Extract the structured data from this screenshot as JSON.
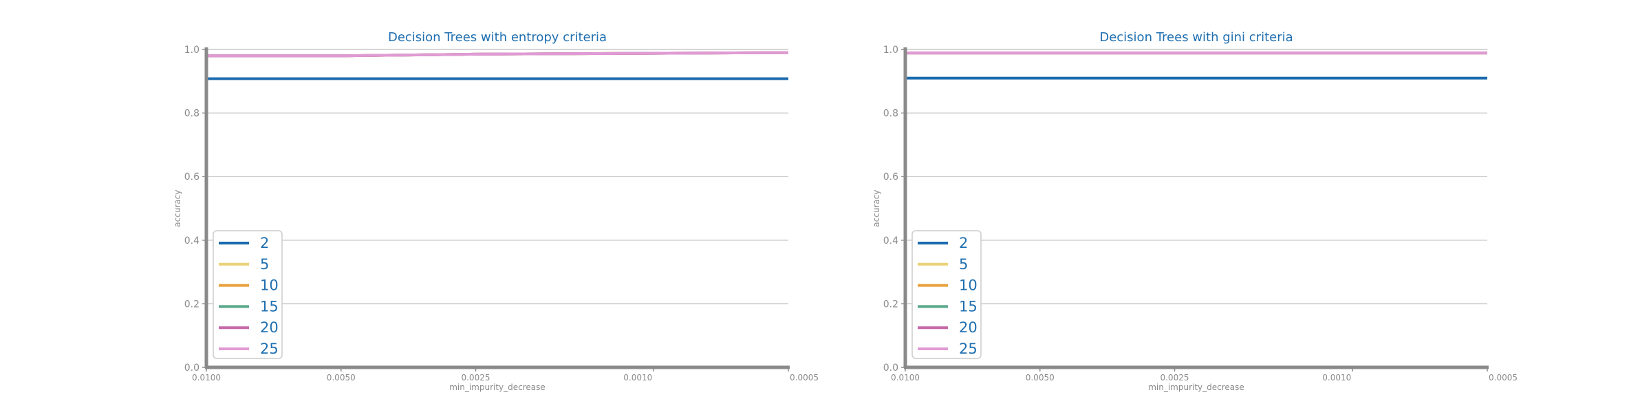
{
  "colors": {
    "title": "#1f6fb0",
    "grid": "#c8c8c8",
    "axis": "#8a8a8a",
    "legend_text": "#1f6fb0",
    "legend_border": "#cccccc"
  },
  "chart_data": [
    {
      "type": "line",
      "title": "Decision Trees with entropy criteria",
      "xlabel": "min_impurity_decrease",
      "ylabel": "accuracy",
      "xticks": [
        "0.0100",
        "0.0050",
        "0.0025",
        "0.0010",
        "0.0005"
      ],
      "x": [
        0.01,
        0.005,
        0.0025,
        0.001,
        0.0005
      ],
      "yticks": [
        "0.0",
        "0.2",
        "0.4",
        "0.6",
        "0.8",
        "1.0"
      ],
      "ylim": [
        0,
        1.0
      ],
      "grid": "horizontal",
      "legend_position": "lower-left",
      "series": [
        {
          "name": "2",
          "color": "#1a6aae",
          "values": [
            0.908,
            0.908,
            0.908,
            0.908,
            0.908
          ]
        },
        {
          "name": "5",
          "color": "#ead27a",
          "values": [
            0.98,
            0.98,
            0.985,
            0.988,
            0.99
          ]
        },
        {
          "name": "10",
          "color": "#e8a23c",
          "values": [
            0.98,
            0.98,
            0.985,
            0.988,
            0.99
          ]
        },
        {
          "name": "15",
          "color": "#5aa88a",
          "values": [
            0.98,
            0.98,
            0.985,
            0.988,
            0.99
          ]
        },
        {
          "name": "20",
          "color": "#c86aa8",
          "values": [
            0.98,
            0.98,
            0.985,
            0.988,
            0.99
          ]
        },
        {
          "name": "25",
          "color": "#e09ad4",
          "values": [
            0.98,
            0.98,
            0.985,
            0.988,
            0.99
          ]
        }
      ]
    },
    {
      "type": "line",
      "title": "Decision Trees with gini criteria",
      "xlabel": "min_impurity_decrease",
      "ylabel": "accuracy",
      "xticks": [
        "0.0100",
        "0.0050",
        "0.0025",
        "0.0010",
        "0.0005"
      ],
      "x": [
        0.01,
        0.005,
        0.0025,
        0.001,
        0.0005
      ],
      "yticks": [
        "0.0",
        "0.2",
        "0.4",
        "0.6",
        "0.8",
        "1.0"
      ],
      "ylim": [
        0,
        1.0
      ],
      "grid": "horizontal",
      "legend_position": "lower-left",
      "series": [
        {
          "name": "2",
          "color": "#1a6aae",
          "values": [
            0.91,
            0.91,
            0.91,
            0.91,
            0.91
          ]
        },
        {
          "name": "5",
          "color": "#ead27a",
          "values": [
            0.989,
            0.989,
            0.989,
            0.989,
            0.989
          ]
        },
        {
          "name": "10",
          "color": "#e8a23c",
          "values": [
            0.989,
            0.989,
            0.989,
            0.989,
            0.989
          ]
        },
        {
          "name": "15",
          "color": "#5aa88a",
          "values": [
            0.989,
            0.989,
            0.989,
            0.989,
            0.989
          ]
        },
        {
          "name": "20",
          "color": "#c86aa8",
          "values": [
            0.989,
            0.989,
            0.989,
            0.989,
            0.989
          ]
        },
        {
          "name": "25",
          "color": "#e09ad4",
          "values": [
            0.989,
            0.989,
            0.989,
            0.989,
            0.989
          ]
        }
      ]
    }
  ]
}
